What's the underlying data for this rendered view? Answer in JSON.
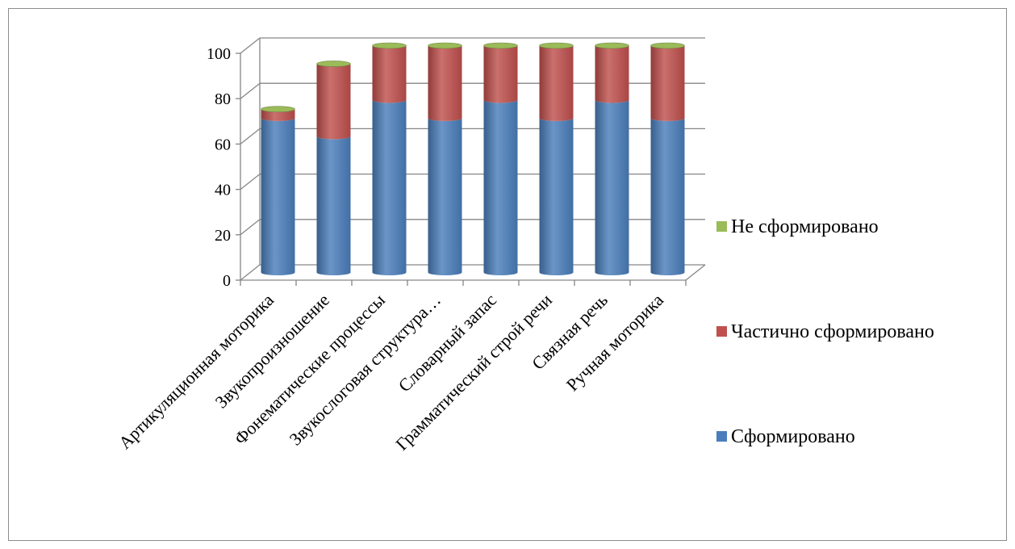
{
  "chart_data": {
    "type": "bar",
    "stacked": true,
    "style": "3d-cylinder",
    "categories": [
      "Артикуляционная моторика",
      "Звукопроизношение",
      "Фонематические процессы",
      "Звукослоговая структура…",
      "Словарный запас",
      "Грамматический строй речи",
      "Связная речь",
      "Ручная моторика"
    ],
    "series": [
      {
        "name": "Сформировано",
        "color": "#4a7ebb",
        "values": [
          68,
          60,
          76,
          68,
          76,
          68,
          76,
          68
        ]
      },
      {
        "name": "Частично сформировано",
        "color": "#c0504d",
        "values": [
          4,
          32,
          24,
          32,
          24,
          32,
          24,
          32
        ]
      },
      {
        "name": "Не сформировано",
        "color": "#9bbb59",
        "values": [
          0,
          0,
          0,
          0,
          0,
          0,
          0,
          0
        ]
      }
    ],
    "ylim": [
      0,
      100
    ],
    "yticks": [
      0,
      20,
      40,
      60,
      80,
      100
    ],
    "grid": true,
    "legend_position": "right"
  }
}
